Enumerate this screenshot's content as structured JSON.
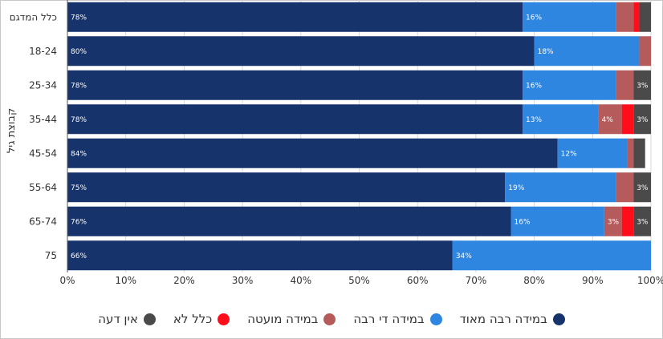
{
  "chart_data": {
    "type": "bar",
    "orientation": "horizontal",
    "stacked": true,
    "ylabel": "קבוצת גיל",
    "xlim": [
      0,
      100
    ],
    "x_ticks": [
      "0%",
      "10%",
      "20%",
      "30%",
      "40%",
      "50%",
      "60%",
      "70%",
      "80%",
      "90%",
      "100%"
    ],
    "grid": true,
    "legend_position": "bottom",
    "categories": [
      "כלל המדגם",
      "18-24",
      "25-34",
      "35-44",
      "45-54",
      "55-64",
      "65-74",
      "75"
    ],
    "series": [
      {
        "name": "במידה רבה מאוד",
        "color": "#17336b",
        "values": [
          78,
          80,
          78,
          78,
          84,
          75,
          76,
          66
        ],
        "labels": [
          "78%",
          "80%",
          "78%",
          "78%",
          "84%",
          "75%",
          "76%",
          "66%"
        ]
      },
      {
        "name": "במידה די רבה",
        "color": "#2f86e0",
        "values": [
          16,
          18,
          16,
          13,
          12,
          19,
          16,
          34
        ],
        "labels": [
          "16%",
          "18%",
          "16%",
          "13%",
          "12%",
          "19%",
          "16%",
          "34%"
        ]
      },
      {
        "name": "במידה מועטה",
        "color": "#b55b5b",
        "values": [
          3,
          2,
          3,
          4,
          1,
          3,
          3,
          0
        ],
        "labels": [
          "",
          "",
          "",
          "4%",
          "",
          "",
          "3%",
          ""
        ]
      },
      {
        "name": "כלל לא",
        "color": "#ff0d1a",
        "values": [
          1,
          0,
          0,
          2,
          0,
          0,
          2,
          0
        ],
        "labels": [
          "",
          "",
          "",
          "",
          "",
          "",
          "",
          ""
        ]
      },
      {
        "name": "אין דעה",
        "color": "#4a4a4a",
        "values": [
          2,
          0,
          3,
          3,
          2,
          3,
          3,
          0
        ],
        "labels": [
          "",
          "",
          "3%",
          "3%",
          "",
          "3%",
          "3%",
          ""
        ]
      }
    ]
  }
}
